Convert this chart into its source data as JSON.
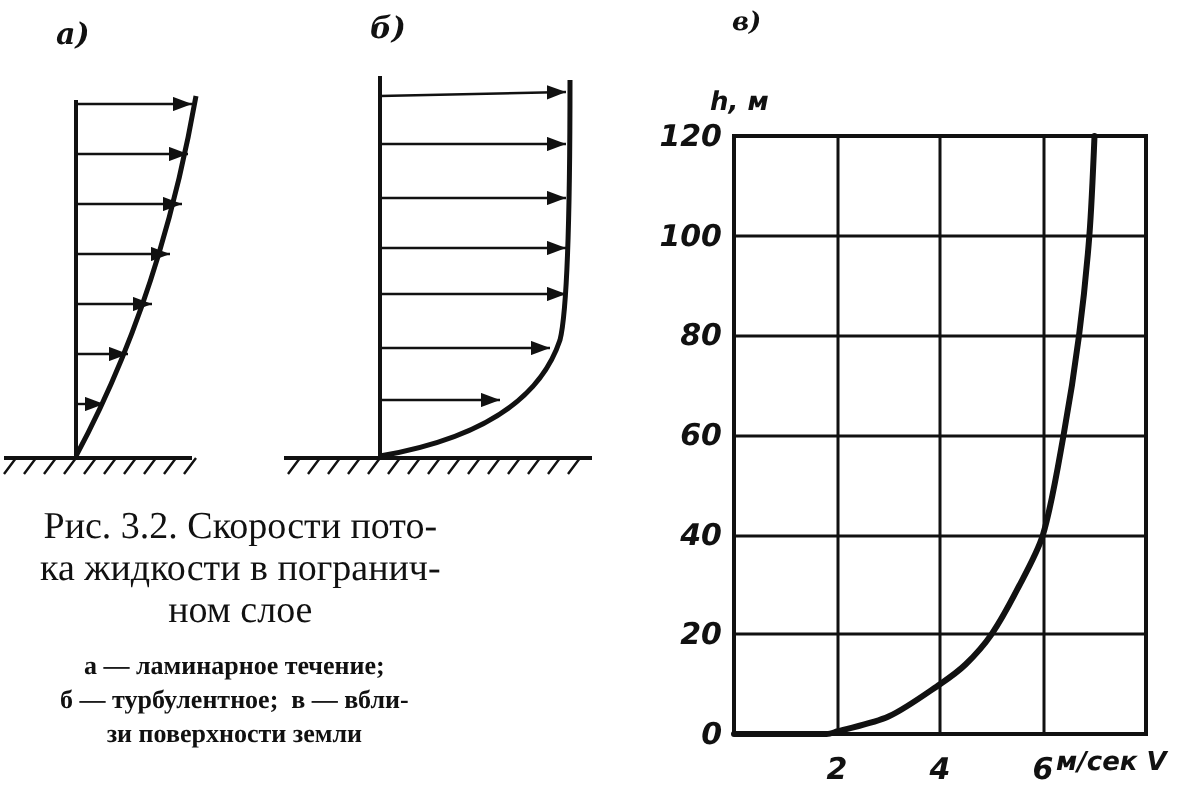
{
  "chart_data": {
    "type": "line",
    "ylabel": "h, м",
    "xlabel": "м/сек V",
    "x": [
      0,
      1,
      1.8,
      2,
      3,
      4,
      4.5,
      5,
      5.5,
      6,
      6.4,
      6.7,
      6.9,
      7
    ],
    "series": [
      {
        "color": "#111111",
        "values": [
          0,
          0,
          0,
          0.5,
          3.5,
          10,
          14,
          20,
          29,
          40,
          60,
          80,
          100,
          120
        ]
      }
    ],
    "xlim": [
      0,
      8
    ],
    "xticks": [
      {
        "value": 0,
        "label": null
      },
      2,
      4,
      6,
      {
        "value": 8,
        "label": null
      }
    ],
    "ylim": [
      0,
      120
    ],
    "yticks": [
      0,
      20,
      40,
      60,
      80,
      100,
      120
    ],
    "grid": true,
    "marker": "none",
    "line_style": "solid",
    "annotations": [
      "а)",
      "б)",
      "в)",
      "Рис. 3.2. Скорости пото-\nка жидкости в погранич-\nном слое",
      "а — ламинарное течение;\nб — турбулентное;  в — вбли-\nзи поверхности земли"
    ]
  }
}
